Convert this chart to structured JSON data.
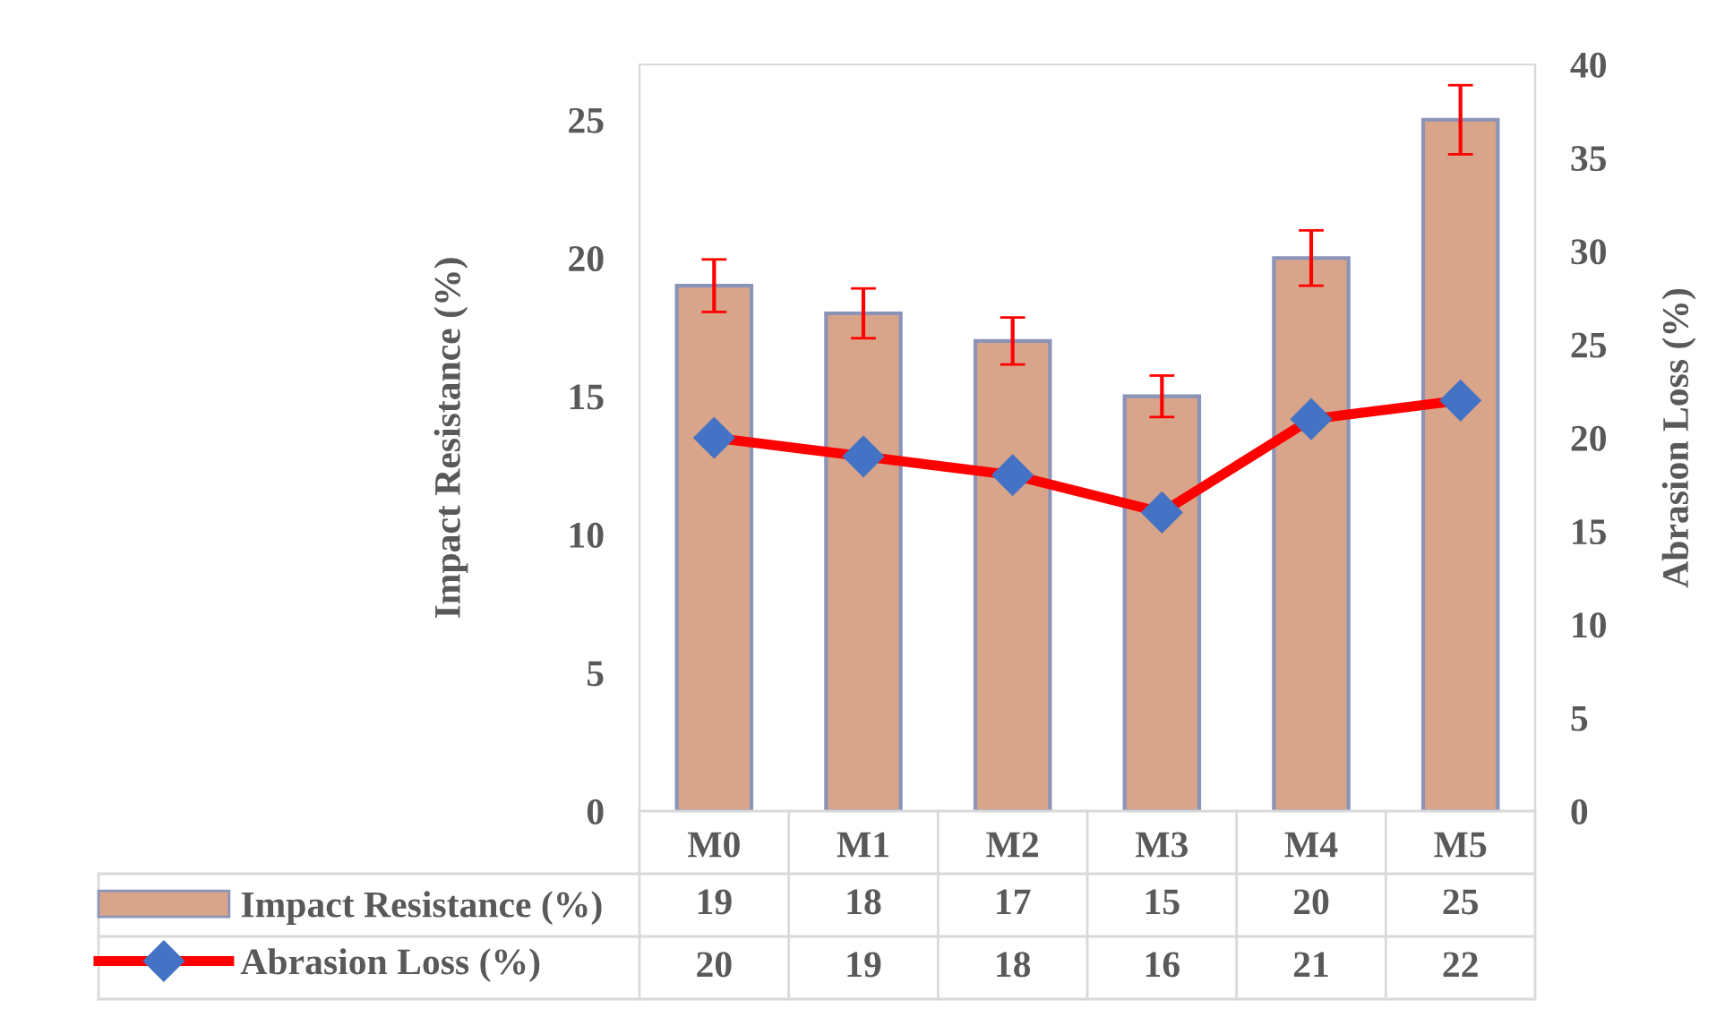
{
  "chart_data": {
    "type": "bar",
    "ylabel": "Impact Resistance (%)",
    "y2label": "Abrasion Loss (%)",
    "categories": [
      "M0",
      "M1",
      "M2",
      "M3",
      "M4",
      "M5"
    ],
    "series": [
      {
        "name": "Impact Resistance (%)",
        "color": "#d9a58a",
        "values": [
          19,
          18,
          17,
          15,
          20,
          25
        ],
        "errors": [
          0.95,
          0.9,
          0.85,
          0.75,
          1,
          1.25
        ]
      },
      {
        "name": "Abrasion Loss (%)",
        "type": "line",
        "axis": "y2",
        "color": "#ff0000",
        "marker": "diamond",
        "values": [
          20,
          19,
          18,
          16,
          21,
          22
        ]
      }
    ],
    "ylim": [
      0,
      27
    ],
    "yticks": [
      0,
      5,
      10,
      15,
      20,
      25
    ],
    "y2lim": [
      0,
      40
    ],
    "y2ticks": [
      0,
      5,
      10,
      15,
      20,
      25,
      30,
      35,
      40
    ],
    "data_labels": true,
    "legend": "bottom",
    "grid": false
  }
}
